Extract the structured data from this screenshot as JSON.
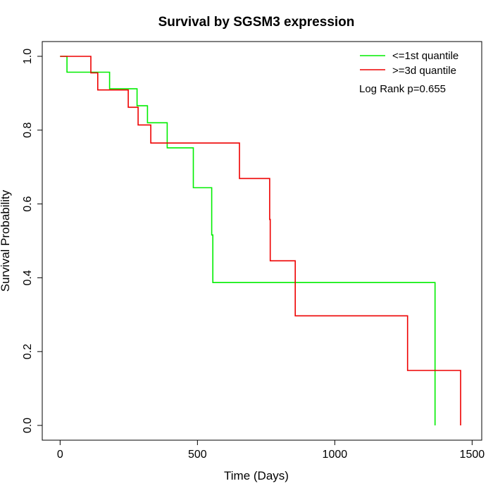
{
  "chart_data": {
    "type": "line",
    "title": "Survival by SGSM3 expression",
    "xlabel": "Time (Days)",
    "ylabel": "Survival Probability",
    "xlim": [
      -65,
      1535
    ],
    "ylim": [
      -0.04,
      1.04
    ],
    "x_ticks": [
      0,
      500,
      1000,
      1500
    ],
    "y_ticks": [
      0.0,
      0.2,
      0.4,
      0.6,
      0.8,
      1.0
    ],
    "x_tick_labels": [
      "0",
      "500",
      "1000",
      "1500"
    ],
    "y_tick_labels": [
      "0.0",
      "0.2",
      "0.4",
      "0.6",
      "0.8",
      "1.0"
    ],
    "grid": false,
    "legend_position": "top-right",
    "annotation": "Log Rank p=0.655",
    "series": [
      {
        "name": "<=1st quantile",
        "color": "#00ee00",
        "step_points": [
          [
            0,
            1.0
          ],
          [
            25,
            1.0
          ],
          [
            25,
            0.957
          ],
          [
            180,
            0.957
          ],
          [
            180,
            0.912
          ],
          [
            280,
            0.912
          ],
          [
            280,
            0.866
          ],
          [
            318,
            0.866
          ],
          [
            318,
            0.82
          ],
          [
            390,
            0.82
          ],
          [
            390,
            0.752
          ],
          [
            485,
            0.752
          ],
          [
            485,
            0.644
          ],
          [
            552,
            0.644
          ],
          [
            552,
            0.516
          ],
          [
            556,
            0.516
          ],
          [
            556,
            0.387
          ],
          [
            1365,
            0.387
          ],
          [
            1365,
            0.0
          ]
        ]
      },
      {
        "name": ">=3d quantile",
        "color": "#ee0000",
        "step_points": [
          [
            0,
            1.0
          ],
          [
            112,
            1.0
          ],
          [
            112,
            0.955
          ],
          [
            137,
            0.955
          ],
          [
            137,
            0.909
          ],
          [
            248,
            0.909
          ],
          [
            248,
            0.862
          ],
          [
            284,
            0.862
          ],
          [
            284,
            0.814
          ],
          [
            330,
            0.814
          ],
          [
            330,
            0.765
          ],
          [
            653,
            0.765
          ],
          [
            653,
            0.669
          ],
          [
            763,
            0.669
          ],
          [
            763,
            0.558
          ],
          [
            765,
            0.558
          ],
          [
            765,
            0.446
          ],
          [
            856,
            0.446
          ],
          [
            856,
            0.297
          ],
          [
            1265,
            0.297
          ],
          [
            1265,
            0.149
          ],
          [
            1458,
            0.149
          ],
          [
            1458,
            0.0
          ]
        ]
      }
    ]
  }
}
